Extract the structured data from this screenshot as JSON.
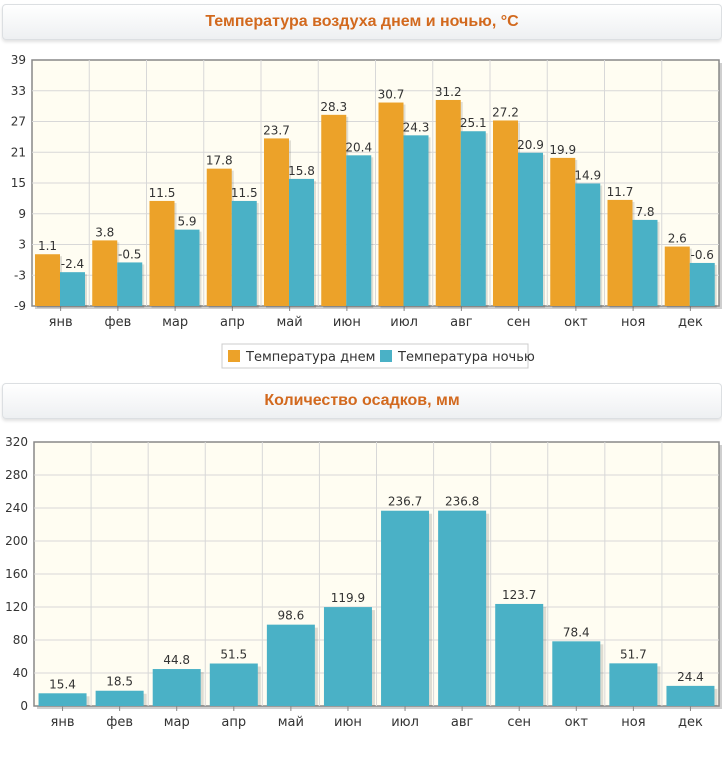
{
  "colors": {
    "day": "#eca229",
    "night": "#4ab1c6",
    "precip": "#4ab1c6",
    "plot_bg": "#fffdf2",
    "grid": "#d8d8d8",
    "title": "#d2691e"
  },
  "chart_data": [
    {
      "type": "bar",
      "title": "Температура воздуха днем и ночью, °C",
      "categories": [
        "янв",
        "фев",
        "мар",
        "апр",
        "май",
        "июн",
        "июл",
        "авг",
        "сен",
        "окт",
        "ноя",
        "дек"
      ],
      "series": [
        {
          "name": "Температура днем",
          "values": [
            1.1,
            3.8,
            11.5,
            17.8,
            23.7,
            28.3,
            30.7,
            31.2,
            27.2,
            19.9,
            11.7,
            2.6
          ]
        },
        {
          "name": "Температура ночью",
          "values": [
            -2.4,
            -0.5,
            5.9,
            11.5,
            15.8,
            20.4,
            24.3,
            25.1,
            20.9,
            14.9,
            7.8,
            -0.6
          ]
        }
      ],
      "ylim": [
        -9,
        39
      ],
      "yticks": [
        -9,
        -3,
        3,
        9,
        15,
        21,
        27,
        33,
        39
      ],
      "grid": true,
      "legend": "bottom-center"
    },
    {
      "type": "bar",
      "title": "Количество осадков, мм",
      "categories": [
        "янв",
        "фев",
        "мар",
        "апр",
        "май",
        "июн",
        "июл",
        "авг",
        "сен",
        "окт",
        "ноя",
        "дек"
      ],
      "values": [
        15.4,
        18.5,
        44.8,
        51.5,
        98.6,
        119.9,
        236.7,
        236.8,
        123.7,
        78.4,
        51.7,
        24.4
      ],
      "ylim": [
        0,
        320
      ],
      "yticks": [
        0,
        40,
        80,
        120,
        160,
        200,
        240,
        280,
        320
      ],
      "grid": true
    }
  ]
}
